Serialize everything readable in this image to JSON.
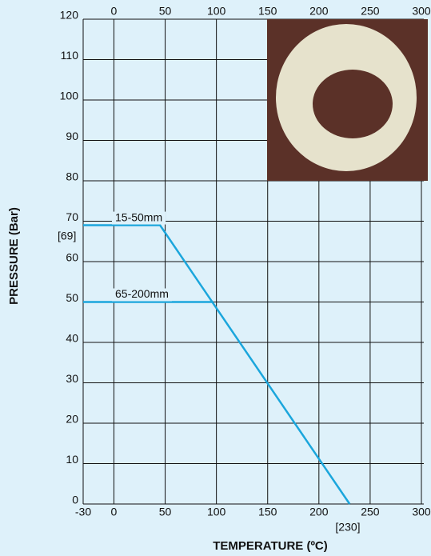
{
  "chart_data": {
    "type": "line",
    "ylabel": "PRESSURE (Bar)",
    "xlabel": "TEMPERATURE (ºC)",
    "xlim": [
      -30,
      300
    ],
    "ylim": [
      0,
      120
    ],
    "xticks": [
      -30,
      0,
      50,
      100,
      150,
      200,
      250,
      300
    ],
    "x2ticks": [
      0,
      50,
      100,
      150,
      200,
      250,
      300
    ],
    "yticks": [
      0,
      10,
      20,
      30,
      40,
      50,
      60,
      70,
      80,
      90,
      100,
      110,
      120
    ],
    "grid": true,
    "series": [
      {
        "name": "15-50mm",
        "color": "#1ba6dc",
        "x": [
          -30,
          45,
          230
        ],
        "values": [
          69,
          69,
          0
        ]
      },
      {
        "name": "65-200mm",
        "color": "#1ba6dc",
        "x": [
          -30,
          97
        ],
        "values": [
          50,
          50
        ]
      }
    ],
    "annotations": [
      "[69]",
      "[230]"
    ]
  }
}
